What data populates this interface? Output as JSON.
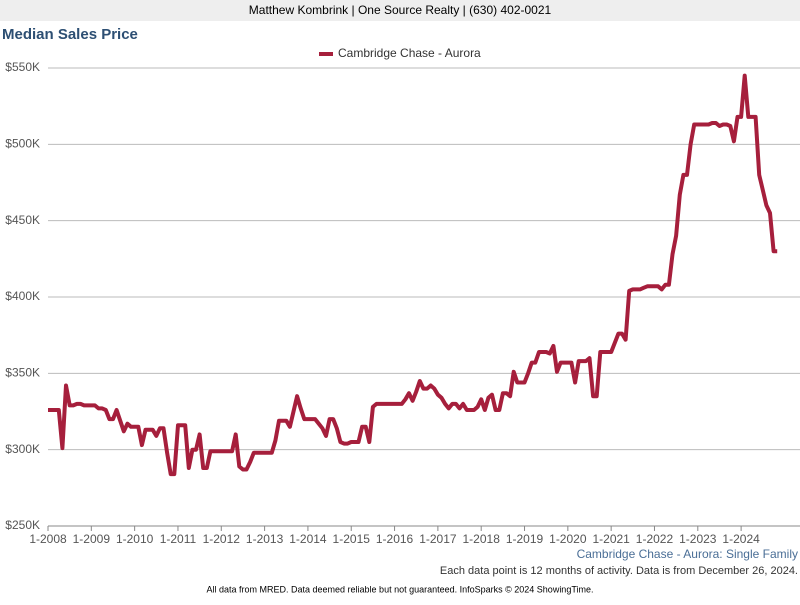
{
  "header": "Matthew Kombrink | One Source Realty | (630) 402-0021",
  "chart_data": {
    "type": "line",
    "title": "Median Sales Price",
    "categories": [
      "1-2008",
      null,
      null,
      null,
      null,
      null,
      null,
      null,
      null,
      null,
      null,
      null,
      "1-2009",
      null,
      null,
      null,
      null,
      null,
      null,
      null,
      null,
      null,
      null,
      null,
      "1-2010",
      null,
      null,
      null,
      null,
      null,
      null,
      null,
      null,
      null,
      null,
      null,
      "1-2011",
      null,
      null,
      null,
      null,
      null,
      null,
      null,
      null,
      null,
      null,
      null,
      "1-2012",
      null,
      null,
      null,
      null,
      null,
      null,
      null,
      null,
      null,
      null,
      null,
      "1-2013",
      null,
      null,
      null,
      null,
      null,
      null,
      null,
      null,
      null,
      null,
      null,
      "1-2014",
      null,
      null,
      null,
      null,
      null,
      null,
      null,
      null,
      null,
      null,
      null,
      "1-2015",
      null,
      null,
      null,
      null,
      null,
      null,
      null,
      null,
      null,
      null,
      null,
      "1-2016",
      null,
      null,
      null,
      null,
      null,
      null,
      null,
      null,
      null,
      null,
      null,
      "1-2017",
      null,
      null,
      null,
      null,
      null,
      null,
      null,
      null,
      null,
      null,
      null,
      "1-2018",
      null,
      null,
      null,
      null,
      null,
      null,
      null,
      null,
      null,
      null,
      null,
      "1-2019",
      null,
      null,
      null,
      null,
      null,
      null,
      null,
      null,
      null,
      null,
      null,
      "1-2020",
      null,
      null,
      null,
      null,
      null,
      null,
      null,
      null,
      null,
      null,
      null,
      "1-2021",
      null,
      null,
      null,
      null,
      null,
      null,
      null,
      null,
      null,
      null,
      null,
      "1-2022",
      null,
      null,
      null,
      null,
      null,
      null,
      null,
      null,
      null,
      null,
      null,
      "1-2023",
      null,
      null,
      null,
      null,
      null,
      null,
      null,
      null,
      null,
      null,
      null,
      "1-2024",
      null,
      null,
      null,
      null,
      null,
      null,
      null,
      null,
      null,
      null
    ],
    "series": [
      {
        "name": "Cambridge Chase - Aurora",
        "color": "#a61f3c",
        "values": [
          326000,
          326000,
          326000,
          326000,
          301000,
          342000,
          329000,
          329000,
          330000,
          330000,
          329000,
          329000,
          329000,
          329000,
          327000,
          327000,
          326000,
          320000,
          320000,
          326000,
          319000,
          312000,
          317000,
          315000,
          315000,
          315000,
          303000,
          313000,
          313000,
          313000,
          309000,
          314000,
          314000,
          298000,
          284000,
          284000,
          316000,
          316000,
          316000,
          288000,
          300000,
          300000,
          310000,
          288000,
          288000,
          299000,
          299000,
          299000,
          299000,
          299000,
          299000,
          299000,
          310000,
          289000,
          287000,
          287000,
          292000,
          298000,
          298000,
          298000,
          298000,
          298000,
          298000,
          306000,
          319000,
          319000,
          319000,
          315000,
          325000,
          335000,
          327000,
          320000,
          320000,
          320000,
          320000,
          317000,
          314000,
          309000,
          320000,
          320000,
          314000,
          305000,
          304000,
          304000,
          305000,
          305000,
          305000,
          315000,
          315000,
          305000,
          328000,
          330000,
          330000,
          330000,
          330000,
          330000,
          330000,
          330000,
          330000,
          333000,
          337000,
          332000,
          338000,
          345000,
          340000,
          340000,
          342000,
          340000,
          336000,
          334000,
          330000,
          327000,
          330000,
          330000,
          327000,
          330000,
          326000,
          326000,
          326000,
          328000,
          333000,
          326000,
          334000,
          336000,
          326000,
          326000,
          337000,
          337000,
          335000,
          351000,
          344000,
          344000,
          344000,
          350000,
          357000,
          357000,
          364000,
          364000,
          364000,
          363000,
          368000,
          351000,
          357000,
          357000,
          357000,
          357000,
          344000,
          358000,
          358000,
          358000,
          360000,
          335000,
          335000,
          364000,
          364000,
          364000,
          364000,
          370000,
          376000,
          376000,
          372000,
          404000,
          405000,
          405000,
          405000,
          406000,
          407000,
          407000,
          407000,
          407000,
          405000,
          408000,
          408000,
          428000,
          440000,
          467000,
          480000,
          480000,
          500000,
          513000,
          513000,
          513000,
          513000,
          513000,
          514000,
          514000,
          512000,
          513000,
          513000,
          512000,
          502000,
          518000,
          518000,
          545000,
          518000,
          518000,
          518000,
          480000,
          470000,
          460000,
          455000,
          430000,
          430000
        ]
      }
    ],
    "ylim": [
      250000,
      550000
    ],
    "yticks": [
      {
        "value": 250000,
        "label": "$250K"
      },
      {
        "value": 300000,
        "label": "$300K"
      },
      {
        "value": 350000,
        "label": "$350K"
      },
      {
        "value": 400000,
        "label": "$400K"
      },
      {
        "value": 450000,
        "label": "$450K"
      },
      {
        "value": 500000,
        "label": "$500K"
      },
      {
        "value": 550000,
        "label": "$550K"
      }
    ],
    "grid": true,
    "subtitle": "Cambridge Chase - Aurora: Single Family",
    "note": "Each data point is 12 months of activity. Data is from December 26, 2024."
  },
  "footer": "All data from MRED. Data deemed reliable but not guaranteed. InfoSparks © 2024 ShowingTime."
}
